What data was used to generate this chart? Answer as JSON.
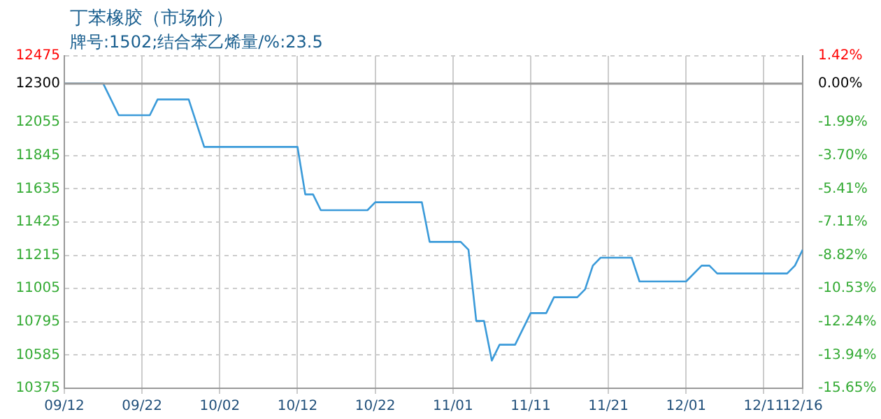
{
  "chart_data": {
    "type": "line",
    "title": "丁苯橡胶（市场价）",
    "subtitle": "牌号:1502;结合苯乙烯量/%:23.5",
    "x": [
      "--09-12",
      "--09-17",
      "--09-19",
      "--09-23",
      "--09-24",
      "--09-28",
      "--09-30",
      "--10-12",
      "--10-13",
      "--10-14",
      "--10-15",
      "--10-21",
      "--10-22",
      "--10-28",
      "--10-29",
      "--11-02",
      "--11-03",
      "--11-04",
      "--11-05",
      "--11-06",
      "--11-07",
      "--11-09",
      "--11-11",
      "--11-13",
      "--11-14",
      "--11-17",
      "--11-18",
      "--11-19",
      "--11-20",
      "--11-24",
      "--11-25",
      "--12-01",
      "--12-03",
      "--12-04",
      "--12-05",
      "--12-14",
      "--12-15",
      "--12-16"
    ],
    "series": [
      {
        "color": "#3a9ad9",
        "values": [
          12300,
          12300,
          12100,
          12100,
          12200,
          12200,
          11900,
          11900,
          11600,
          11600,
          11500,
          11500,
          11550,
          11550,
          11300,
          11300,
          11250,
          10800,
          10800,
          10550,
          10650,
          10650,
          10850,
          10850,
          10950,
          10950,
          11000,
          11150,
          11200,
          11200,
          11050,
          11050,
          11150,
          11150,
          11100,
          11100,
          11150,
          11250
        ]
      }
    ],
    "xlim": [
      "--09-12",
      "--12-16"
    ],
    "xticks": [
      {
        "value": "--09-12",
        "label": "09/12"
      },
      {
        "value": "--09-22",
        "label": "09/22"
      },
      {
        "value": "--10-02",
        "label": "10/02"
      },
      {
        "value": "--10-12",
        "label": "10/12"
      },
      {
        "value": "--10-22",
        "label": "10/22"
      },
      {
        "value": "--11-01",
        "label": "11/01"
      },
      {
        "value": "--11-11",
        "label": "11/11"
      },
      {
        "value": "--11-21",
        "label": "11/21"
      },
      {
        "value": "--12-01",
        "label": "12/01"
      },
      {
        "value": "--12-11",
        "label": "12/11"
      },
      {
        "value": "--12-16",
        "label": "12/16"
      }
    ],
    "ylim": [
      10375,
      12475
    ],
    "yticks": [
      10375,
      10585,
      10795,
      11005,
      11215,
      11425,
      11635,
      11845,
      12055,
      12300,
      12475
    ],
    "y2lim": [
      -15.65,
      1.42
    ],
    "y2ticks": [
      {
        "value": -15.65,
        "label": "-15.65%"
      },
      {
        "value": -13.94,
        "label": "-13.94%"
      },
      {
        "value": -12.24,
        "label": "-12.24%"
      },
      {
        "value": -10.53,
        "label": "-10.53%"
      },
      {
        "value": -8.82,
        "label": "-8.82%"
      },
      {
        "value": -7.11,
        "label": "-7.11%"
      },
      {
        "value": -5.41,
        "label": "-5.41%"
      },
      {
        "value": -3.7,
        "label": "-3.70%"
      },
      {
        "value": -1.99,
        "label": "-1.99%"
      },
      {
        "value": 0,
        "label": "0.00%"
      },
      {
        "value": 1.42,
        "label": "1.42%"
      }
    ],
    "ref_lines": [
      {
        "axis": "y",
        "value": 12300,
        "color": "#999999"
      }
    ],
    "grid": true,
    "legend": false,
    "marker": "none",
    "line_style": "solid"
  }
}
